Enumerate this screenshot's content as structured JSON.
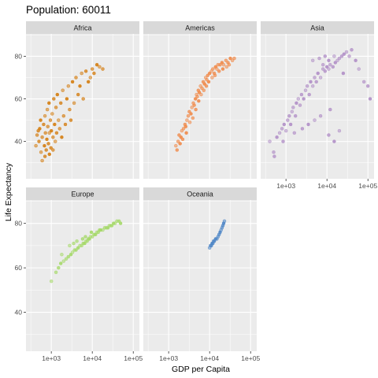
{
  "chart_data": {
    "type": "scatter",
    "title": "Population: 60011",
    "xlabel": "GDP per Capita",
    "ylabel": "Life Expectancy",
    "x_scale": "log10",
    "xlim": [
      241,
      141000
    ],
    "ylim": [
      22.5,
      90.5
    ],
    "x_ticks": [
      1000,
      10000,
      100000
    ],
    "x_tick_labels": [
      "1e+03",
      "1e+04",
      "1e+05"
    ],
    "y_ticks": [
      40,
      60,
      80
    ],
    "y_tick_labels": [
      "40",
      "60",
      "80"
    ],
    "grid": true,
    "legend": "none",
    "panel_background": "#ebebeb",
    "strip_background": "#d9d9d9",
    "grid_color": "#ffffff",
    "panels": [
      {
        "name": "Africa",
        "color": "#d47e12",
        "points": [
          [
            420,
            38
          ],
          [
            450,
            43
          ],
          [
            500,
            40
          ],
          [
            520,
            46
          ],
          [
            560,
            35
          ],
          [
            600,
            42
          ],
          [
            650,
            48
          ],
          [
            680,
            38
          ],
          [
            700,
            52
          ],
          [
            720,
            44
          ],
          [
            750,
            36
          ],
          [
            780,
            41
          ],
          [
            800,
            55
          ],
          [
            820,
            47
          ],
          [
            850,
            39
          ],
          [
            880,
            58
          ],
          [
            900,
            44
          ],
          [
            950,
            50
          ],
          [
            980,
            37
          ],
          [
            1000,
            45
          ],
          [
            1050,
            53
          ],
          [
            1100,
            42
          ],
          [
            1150,
            60
          ],
          [
            1200,
            48
          ],
          [
            1250,
            40
          ],
          [
            1300,
            56
          ],
          [
            1350,
            44
          ],
          [
            1400,
            62
          ],
          [
            1500,
            50
          ],
          [
            1600,
            46
          ],
          [
            1700,
            58
          ],
          [
            1800,
            42
          ],
          [
            1900,
            64
          ],
          [
            2000,
            52
          ],
          [
            2200,
            48
          ],
          [
            2400,
            60
          ],
          [
            2600,
            66
          ],
          [
            2800,
            55
          ],
          [
            3000,
            50
          ],
          [
            3300,
            68
          ],
          [
            3600,
            58
          ],
          [
            4000,
            70
          ],
          [
            4500,
            62
          ],
          [
            5000,
            66
          ],
          [
            5500,
            72
          ],
          [
            6000,
            60
          ],
          [
            7000,
            73
          ],
          [
            8000,
            68
          ],
          [
            9000,
            70
          ],
          [
            10000,
            74
          ],
          [
            11000,
            72
          ],
          [
            13000,
            76
          ],
          [
            15000,
            75
          ],
          [
            18000,
            74
          ],
          [
            700,
            33
          ],
          [
            900,
            34
          ],
          [
            600,
            31
          ],
          [
            1100,
            36
          ],
          [
            480,
            45
          ],
          [
            550,
            50
          ]
        ]
      },
      {
        "name": "Americas",
        "color": "#f08a4b",
        "points": [
          [
            1500,
            38
          ],
          [
            1700,
            40
          ],
          [
            1800,
            43
          ],
          [
            2000,
            42
          ],
          [
            2100,
            45
          ],
          [
            2300,
            46
          ],
          [
            2500,
            48
          ],
          [
            2600,
            47
          ],
          [
            2800,
            50
          ],
          [
            3000,
            52
          ],
          [
            3200,
            54
          ],
          [
            3500,
            53
          ],
          [
            3700,
            56
          ],
          [
            4000,
            58
          ],
          [
            4200,
            57
          ],
          [
            4500,
            60
          ],
          [
            4800,
            62
          ],
          [
            5000,
            61
          ],
          [
            5300,
            64
          ],
          [
            5600,
            63
          ],
          [
            6000,
            66
          ],
          [
            6500,
            65
          ],
          [
            7000,
            68
          ],
          [
            7500,
            67
          ],
          [
            8000,
            70
          ],
          [
            8500,
            69
          ],
          [
            9000,
            71
          ],
          [
            10000,
            72
          ],
          [
            11000,
            73
          ],
          [
            12000,
            74
          ],
          [
            13000,
            72
          ],
          [
            14000,
            75
          ],
          [
            15000,
            74
          ],
          [
            16000,
            76
          ],
          [
            18000,
            76
          ],
          [
            20000,
            77
          ],
          [
            22000,
            76
          ],
          [
            25000,
            78
          ],
          [
            28000,
            77
          ],
          [
            32000,
            79
          ],
          [
            36000,
            78
          ],
          [
            40000,
            79
          ],
          [
            2200,
            41
          ],
          [
            2700,
            44
          ],
          [
            3300,
            49
          ],
          [
            3900,
            51
          ],
          [
            4600,
            55
          ],
          [
            5400,
            59
          ],
          [
            6200,
            62
          ],
          [
            7200,
            64
          ],
          [
            8300,
            66
          ],
          [
            9500,
            68
          ],
          [
            11500,
            70
          ],
          [
            13500,
            71
          ],
          [
            17000,
            73
          ],
          [
            21000,
            74
          ],
          [
            26000,
            75
          ],
          [
            30000,
            76
          ],
          [
            1600,
            36
          ],
          [
            1900,
            39
          ]
        ]
      },
      {
        "name": "Asia",
        "color": "#b18fc7",
        "points": [
          [
            400,
            40
          ],
          [
            500,
            35
          ],
          [
            520,
            33
          ],
          [
            600,
            42
          ],
          [
            700,
            44
          ],
          [
            800,
            46
          ],
          [
            850,
            40
          ],
          [
            900,
            48
          ],
          [
            1000,
            45
          ],
          [
            1100,
            50
          ],
          [
            1200,
            52
          ],
          [
            1300,
            48
          ],
          [
            1400,
            54
          ],
          [
            1500,
            56
          ],
          [
            1700,
            52
          ],
          [
            1800,
            58
          ],
          [
            2000,
            60
          ],
          [
            2200,
            57
          ],
          [
            2400,
            62
          ],
          [
            2700,
            60
          ],
          [
            3000,
            64
          ],
          [
            3300,
            66
          ],
          [
            3700,
            62
          ],
          [
            4000,
            68
          ],
          [
            4500,
            66
          ],
          [
            5000,
            70
          ],
          [
            5500,
            68
          ],
          [
            6000,
            72
          ],
          [
            7000,
            70
          ],
          [
            8000,
            74
          ],
          [
            9000,
            73
          ],
          [
            10000,
            75
          ],
          [
            11000,
            74
          ],
          [
            12000,
            76
          ],
          [
            14000,
            75
          ],
          [
            16000,
            77
          ],
          [
            18000,
            78
          ],
          [
            20000,
            79
          ],
          [
            23000,
            80
          ],
          [
            26000,
            81
          ],
          [
            30000,
            82
          ],
          [
            35000,
            80
          ],
          [
            40000,
            83
          ],
          [
            50000,
            78
          ],
          [
            60000,
            74
          ],
          [
            80000,
            68
          ],
          [
            100000,
            66
          ],
          [
            113000,
            60
          ],
          [
            4500,
            78
          ],
          [
            6500,
            79
          ],
          [
            9000,
            80
          ],
          [
            11000,
            78
          ],
          [
            15000,
            80
          ],
          [
            1600,
            44
          ],
          [
            2500,
            46
          ],
          [
            3500,
            48
          ],
          [
            5000,
            50
          ],
          [
            7000,
            52
          ],
          [
            11000,
            43
          ],
          [
            15000,
            40
          ],
          [
            20000,
            45
          ],
          [
            8000,
            76
          ],
          [
            12000,
            55
          ],
          [
            25000,
            72
          ]
        ]
      },
      {
        "name": "Europe",
        "color": "#a6d96a",
        "points": [
          [
            1000,
            54
          ],
          [
            1300,
            58
          ],
          [
            1500,
            60
          ],
          [
            1700,
            62
          ],
          [
            2000,
            63
          ],
          [
            2300,
            64
          ],
          [
            2600,
            65
          ],
          [
            3000,
            66
          ],
          [
            3300,
            67
          ],
          [
            3700,
            68
          ],
          [
            4000,
            68
          ],
          [
            4500,
            69
          ],
          [
            5000,
            70
          ],
          [
            5500,
            70
          ],
          [
            6000,
            71
          ],
          [
            6500,
            71
          ],
          [
            7000,
            72
          ],
          [
            7500,
            72
          ],
          [
            8000,
            73
          ],
          [
            8500,
            73
          ],
          [
            9000,
            74
          ],
          [
            10000,
            74
          ],
          [
            11000,
            75
          ],
          [
            12000,
            75
          ],
          [
            13000,
            76
          ],
          [
            14000,
            76
          ],
          [
            15000,
            77
          ],
          [
            16000,
            77
          ],
          [
            18000,
            77
          ],
          [
            20000,
            78
          ],
          [
            22000,
            78
          ],
          [
            24000,
            78
          ],
          [
            26000,
            79
          ],
          [
            28000,
            79
          ],
          [
            30000,
            79
          ],
          [
            33000,
            80
          ],
          [
            36000,
            80
          ],
          [
            40000,
            81
          ],
          [
            45000,
            81
          ],
          [
            49000,
            80
          ],
          [
            2800,
            70
          ],
          [
            4200,
            72
          ],
          [
            6800,
            74
          ],
          [
            9500,
            76
          ],
          [
            1800,
            66
          ],
          [
            3500,
            71
          ],
          [
            5800,
            73
          ]
        ]
      },
      {
        "name": "Oceania",
        "color": "#4f86c6",
        "points": [
          [
            10000,
            69
          ],
          [
            10500,
            70
          ],
          [
            11000,
            70
          ],
          [
            11500,
            71
          ],
          [
            12000,
            71
          ],
          [
            12500,
            72
          ],
          [
            13000,
            72
          ],
          [
            14000,
            73
          ],
          [
            15000,
            73
          ],
          [
            16000,
            74
          ],
          [
            17000,
            75
          ],
          [
            18000,
            76
          ],
          [
            19000,
            77
          ],
          [
            20000,
            78
          ],
          [
            21000,
            79
          ],
          [
            22000,
            80
          ],
          [
            23000,
            81
          ]
        ]
      }
    ]
  }
}
